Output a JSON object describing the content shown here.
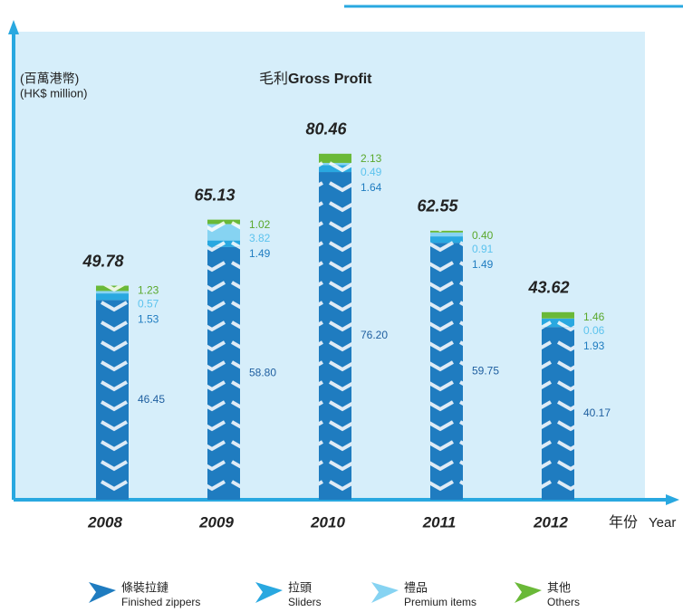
{
  "chart_data": {
    "type": "stacked-bar",
    "title_zh": "毛利",
    "title": "Gross Profit",
    "unit_zh": "(百萬港幣)",
    "unit": "(HK$ million)",
    "xlabel_zh": "年份",
    "xlabel": "Year",
    "categories": [
      "2008",
      "2009",
      "2010",
      "2011",
      "2012"
    ],
    "series": [
      {
        "name": "條裝拉鏈",
        "name_en": "Finished zippers",
        "color": "#1f7cc0",
        "label_color": "#1f5fa0",
        "values": [
          46.45,
          58.8,
          76.2,
          59.75,
          40.17
        ],
        "value_labels": [
          "46.45",
          "58.80",
          "76.20",
          "59.75",
          "40.17"
        ]
      },
      {
        "name": "拉頭",
        "name_en": "Sliders",
        "color": "#29a8e0",
        "label_color": "#1f7cc0",
        "values": [
          1.53,
          1.49,
          1.64,
          1.49,
          1.93
        ],
        "value_labels": [
          "1.53",
          "1.49",
          "1.64",
          "1.49",
          "1.93"
        ]
      },
      {
        "name": "禮品",
        "name_en": "Premium items",
        "color": "#86d3f2",
        "label_color": "#5cc3ee",
        "values": [
          0.57,
          3.82,
          0.49,
          0.91,
          0.06
        ],
        "value_labels": [
          "0.57",
          "3.82",
          "0.49",
          "0.91",
          "0.06"
        ]
      },
      {
        "name": "其他",
        "name_en": "Others",
        "color": "#6ab938",
        "label_color": "#5aa82c",
        "values": [
          1.23,
          1.02,
          2.13,
          0.4,
          1.46
        ],
        "value_labels": [
          "1.23",
          "1.02",
          "2.13",
          "0.40",
          "1.46"
        ]
      }
    ],
    "totals": [
      49.78,
      65.13,
      80.46,
      62.55,
      43.62
    ]
  }
}
